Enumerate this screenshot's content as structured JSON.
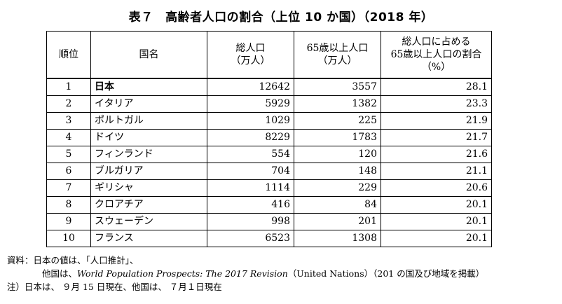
{
  "title": "表７　高齢者人口の割合（上位 10 か国）（2018 年）",
  "table": {
    "headers": {
      "rank": "順位",
      "country": "国名",
      "pop_line1": "総人口",
      "pop_line2": "（万人）",
      "old_line1": "65歳以上人口",
      "old_line2": "（万人）",
      "pct_line1": "総人口に占める",
      "pct_line2": "65歳以上人口の割合",
      "pct_line3": "（%）"
    },
    "rows": [
      {
        "rank": "1",
        "country": "日本",
        "pop": "12642",
        "old": "3557",
        "pct": "28.1"
      },
      {
        "rank": "2",
        "country": "イタリア",
        "pop": "5929",
        "old": "1382",
        "pct": "23.3"
      },
      {
        "rank": "3",
        "country": "ポルトガル",
        "pop": "1029",
        "old": "225",
        "pct": "21.9"
      },
      {
        "rank": "4",
        "country": "ドイツ",
        "pop": "8229",
        "old": "1783",
        "pct": "21.7"
      },
      {
        "rank": "5",
        "country": "フィンランド",
        "pop": "554",
        "old": "120",
        "pct": "21.6"
      },
      {
        "rank": "6",
        "country": "ブルガリア",
        "pop": "704",
        "old": "148",
        "pct": "21.1"
      },
      {
        "rank": "7",
        "country": "ギリシャ",
        "pop": "1114",
        "old": "229",
        "pct": "20.6"
      },
      {
        "rank": "8",
        "country": "クロアチア",
        "pop": "416",
        "old": "84",
        "pct": "20.1"
      },
      {
        "rank": "9",
        "country": "スウェーデン",
        "pop": "998",
        "old": "201",
        "pct": "20.1"
      },
      {
        "rank": "10",
        "country": "フランス",
        "pop": "6523",
        "old": "1308",
        "pct": "20.1"
      }
    ]
  },
  "notes": {
    "source_line1": "資料：日本の値は、「人口推計」、",
    "source_line2_prefix": "他国は、",
    "source_line2_italic": "World Population Prospects: The 2017 Revision",
    "source_line2_suffix": "（United Nations）（201 の国及び地域を掲載）",
    "note": "注）日本は、 ９月 15 日現在、他国は、 ７月１日現在"
  }
}
